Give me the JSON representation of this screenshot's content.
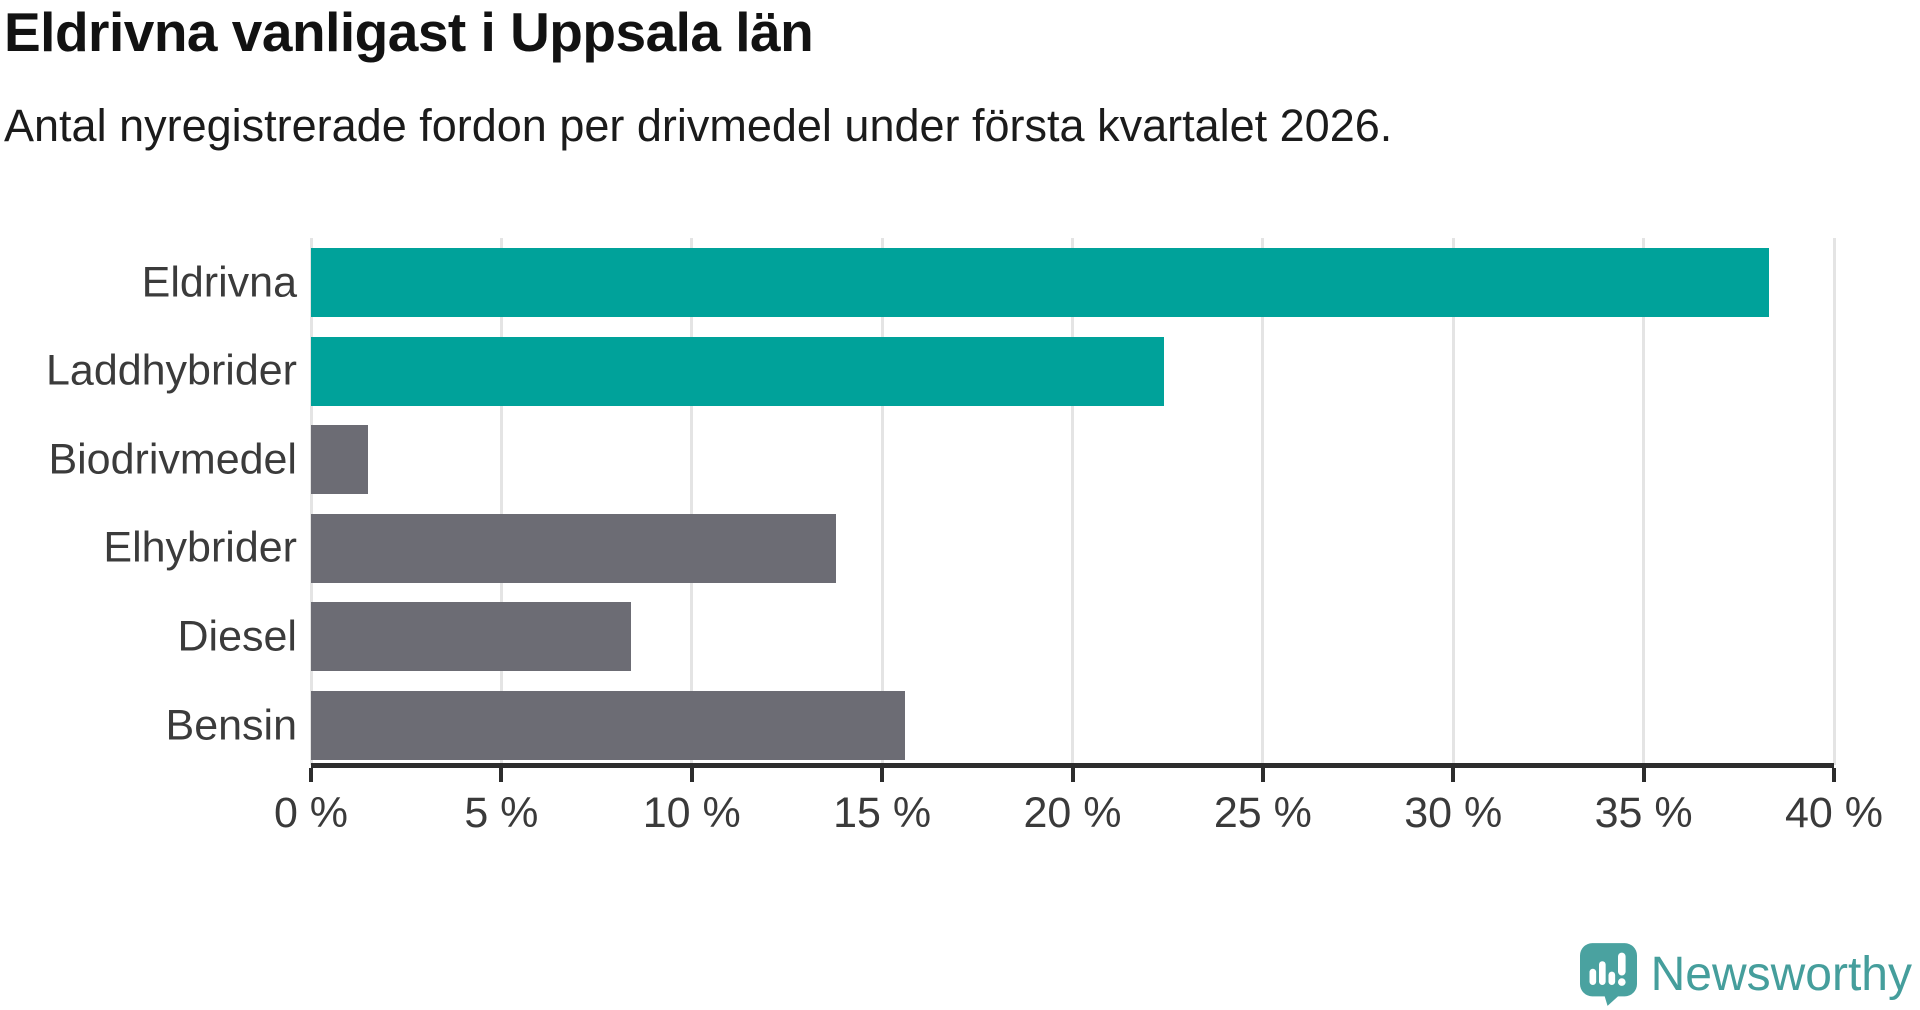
{
  "header": {
    "title": "Eldrivna vanligast i Uppsala län",
    "subtitle": "Antal nyregistrerade fordon per drivmedel under första kvartalet 2026."
  },
  "chart_data": {
    "type": "bar",
    "orientation": "horizontal",
    "title": "Eldrivna vanligast i Uppsala län",
    "subtitle": "Antal nyregistrerade fordon per drivmedel under första kvartalet 2026.",
    "categories": [
      "Eldrivna",
      "Laddhybrider",
      "Biodrivmedel",
      "Elhybrider",
      "Diesel",
      "Bensin"
    ],
    "values": [
      38.3,
      22.4,
      1.5,
      13.8,
      8.4,
      15.6
    ],
    "unit": "%",
    "bar_colors": [
      "#00a29a",
      "#00a29a",
      "#6c6c74",
      "#6c6c74",
      "#6c6c74",
      "#6c6c74"
    ],
    "xlabel": "",
    "ylabel": "",
    "xlim": [
      0,
      40
    ],
    "x_ticks": [
      0,
      5,
      10,
      15,
      20,
      25,
      30,
      35,
      40
    ],
    "x_tick_labels": [
      "0 %",
      "5 %",
      "10 %",
      "15 %",
      "20 %",
      "25 %",
      "30 %",
      "35 %",
      "40 %"
    ],
    "grid": true,
    "legend": false
  },
  "footer": {
    "logo_text": "Newsworthy"
  },
  "colors": {
    "accent_teal": "#00a29a",
    "bar_gray": "#6c6c74",
    "gridline": "#e4e4e4",
    "axis": "#2d2d2d",
    "logo_teal": "#459e9c"
  }
}
